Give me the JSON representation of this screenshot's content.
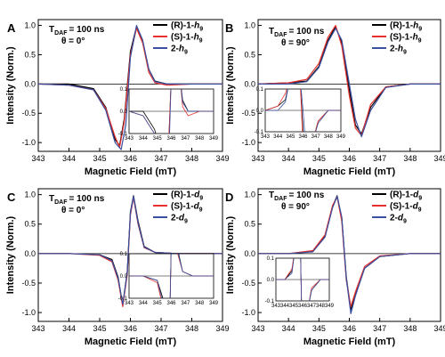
{
  "colors": {
    "black": "#000000",
    "red": "#e8312f",
    "blue": "#3a4fa0"
  },
  "chart_data": [
    {
      "type": "line",
      "panel": "A",
      "annotation": {
        "t_daf": "T",
        "t_sub": "DAF",
        "t_value": "= 100 ns",
        "theta": "θ = 0°"
      },
      "xlabel": "Magnetic Field (mT)",
      "ylabel": "Intensity (Norm.)",
      "xlim": [
        343,
        349
      ],
      "ylim": [
        -1.15,
        1.1
      ],
      "xticks": [
        "343",
        "344",
        "345",
        "346",
        "347",
        "348",
        "349"
      ],
      "yticks": [
        "-1.0",
        "-0.5",
        "0.0",
        "0.5",
        "1.0"
      ],
      "legend_position": "top-right",
      "series": [
        {
          "name": "(R)-1-",
          "name_sub": "h9",
          "color": "black",
          "x": [
            343,
            344,
            344.8,
            345.2,
            345.5,
            345.65,
            345.8,
            346.0,
            346.2,
            346.4,
            346.6,
            346.8,
            347.2,
            348,
            349
          ],
          "y": [
            0,
            0,
            -0.08,
            -0.4,
            -0.95,
            -1.05,
            -0.6,
            0.55,
            0.98,
            0.72,
            0.25,
            0.05,
            0,
            0,
            0
          ]
        },
        {
          "name": "(S)-1-",
          "name_sub": "h9",
          "color": "red",
          "x": [
            343,
            344,
            344.8,
            345.2,
            345.5,
            345.65,
            345.8,
            346.0,
            346.2,
            346.4,
            346.6,
            346.8,
            347.2,
            348,
            349
          ],
          "y": [
            0,
            -0.02,
            -0.1,
            -0.42,
            -0.9,
            -1.08,
            -0.65,
            0.5,
            0.95,
            0.7,
            0.2,
            0.02,
            -0.02,
            0,
            0
          ]
        },
        {
          "name": "2-",
          "name_sub": "h9",
          "color": "blue",
          "x": [
            343,
            344,
            344.8,
            345.2,
            345.5,
            345.7,
            345.85,
            346.0,
            346.2,
            346.4,
            346.6,
            346.8,
            347.2,
            348,
            349
          ],
          "y": [
            0,
            -0.02,
            -0.1,
            -0.45,
            -1.0,
            -1.12,
            -0.7,
            0.45,
            1.0,
            0.75,
            0.25,
            0.04,
            0,
            0,
            0
          ]
        }
      ],
      "inset": {
        "xlim": [
          343,
          349
        ],
        "ylim": [
          -0.1,
          0.1
        ],
        "xticks": [
          "343",
          "344",
          "345",
          "346",
          "347",
          "348",
          "349"
        ],
        "yticks": [
          "0.1",
          "0.0",
          "-0.1"
        ]
      }
    },
    {
      "type": "line",
      "panel": "B",
      "annotation": {
        "t_daf": "T",
        "t_sub": "DAF",
        "t_value": "= 100 ns",
        "theta": "θ = 90°"
      },
      "xlabel": "Magnetic Field (mT)",
      "ylabel": "Intensity (Norm.)",
      "xlim": [
        343,
        349
      ],
      "ylim": [
        -1.15,
        1.1
      ],
      "xticks": [
        "343",
        "344",
        "345",
        "346",
        "347",
        "348",
        "349"
      ],
      "yticks": [
        "-1.0",
        "-0.5",
        "0.0",
        "0.5",
        "1.0"
      ],
      "legend_position": "top-right",
      "series": [
        {
          "name": "(R)-1-",
          "name_sub": "h9",
          "color": "black",
          "x": [
            343,
            344,
            344.6,
            345.0,
            345.3,
            345.55,
            345.75,
            346.0,
            346.2,
            346.4,
            346.7,
            347.2,
            348,
            349
          ],
          "y": [
            0,
            0.02,
            0.05,
            0.3,
            0.75,
            0.98,
            0.7,
            -0.1,
            -0.7,
            -0.85,
            -0.4,
            -0.05,
            0,
            0
          ]
        },
        {
          "name": "(S)-1-",
          "name_sub": "h9",
          "color": "red",
          "x": [
            343,
            344,
            344.6,
            345.0,
            345.3,
            345.55,
            345.75,
            346.0,
            346.2,
            346.4,
            346.7,
            347.2,
            348,
            349
          ],
          "y": [
            0,
            0.02,
            0.08,
            0.35,
            0.8,
            1.0,
            0.65,
            -0.2,
            -0.75,
            -0.88,
            -0.35,
            -0.05,
            0,
            0
          ]
        },
        {
          "name": "2-",
          "name_sub": "h9",
          "color": "blue",
          "x": [
            343,
            344,
            344.6,
            345.0,
            345.3,
            345.55,
            345.75,
            346.0,
            346.2,
            346.4,
            346.7,
            347.2,
            348,
            349
          ],
          "y": [
            0,
            0,
            0.04,
            0.28,
            0.72,
            0.95,
            0.75,
            0,
            -0.6,
            -0.9,
            -0.45,
            -0.06,
            0,
            0
          ]
        }
      ],
      "inset": {
        "xlim": [
          343,
          349
        ],
        "ylim": [
          -0.1,
          0.1
        ],
        "xticks": [
          "343",
          "344",
          "345",
          "346",
          "347",
          "348",
          "349"
        ],
        "yticks": [
          "0.1",
          "0.0",
          "-0.1"
        ]
      }
    },
    {
      "type": "line",
      "panel": "C",
      "annotation": {
        "t_daf": "T",
        "t_sub": "DAF",
        "t_value": "= 100 ns",
        "theta": "θ = 0°"
      },
      "xlabel": "Magnetic Field (mT)",
      "ylabel": "Intensity (Norm.)",
      "xlim": [
        343,
        349
      ],
      "ylim": [
        -1.15,
        1.1
      ],
      "xticks": [
        "343",
        "344",
        "345",
        "346",
        "347",
        "348",
        "349"
      ],
      "yticks": [
        "-1.0",
        "-0.5",
        "0.0",
        "0.5",
        "1.0"
      ],
      "legend_position": "top-right",
      "series": [
        {
          "name": "(R)-1-",
          "name_sub": "d9",
          "color": "black",
          "x": [
            343,
            344,
            345,
            345.4,
            345.6,
            345.75,
            345.9,
            346.0,
            346.1,
            346.25,
            346.45,
            346.8,
            347.5,
            349
          ],
          "y": [
            0,
            0,
            -0.02,
            -0.1,
            -0.4,
            -0.88,
            -0.3,
            0.7,
            0.98,
            0.55,
            0.12,
            0.02,
            0,
            0
          ]
        },
        {
          "name": "(S)-1-",
          "name_sub": "d9",
          "color": "red",
          "x": [
            343,
            344,
            345,
            345.4,
            345.6,
            345.75,
            345.9,
            346.0,
            346.1,
            346.25,
            346.45,
            346.8,
            347.5,
            349
          ],
          "y": [
            0,
            0,
            -0.03,
            -0.14,
            -0.45,
            -0.9,
            -0.35,
            0.65,
            0.95,
            0.5,
            0.1,
            0.02,
            0,
            0
          ]
        },
        {
          "name": "2-",
          "name_sub": "d9",
          "color": "blue",
          "x": [
            343,
            344,
            345,
            345.4,
            345.6,
            345.75,
            345.9,
            346.0,
            346.1,
            346.25,
            346.45,
            346.8,
            347.5,
            349
          ],
          "y": [
            0,
            0,
            -0.02,
            -0.12,
            -0.42,
            -0.86,
            -0.32,
            0.68,
            0.97,
            0.52,
            0.11,
            0.02,
            0,
            0
          ]
        }
      ],
      "inset": {
        "xlim": [
          343,
          349
        ],
        "ylim": [
          -0.1,
          0.1
        ],
        "xticks": [
          "343",
          "344",
          "345",
          "346",
          "347",
          "348",
          "349"
        ],
        "yticks": [
          "0.1",
          "0.0",
          "-0.1"
        ]
      }
    },
    {
      "type": "line",
      "panel": "D",
      "annotation": {
        "t_daf": "T",
        "t_sub": "DAF",
        "t_value": "= 100 ns",
        "theta": "θ = 90°"
      },
      "xlabel": "Magnetic Field (mT)",
      "ylabel": "Intensity (Norm.)",
      "xlim": [
        343,
        349
      ],
      "ylim": [
        -1.15,
        1.1
      ],
      "xticks": [
        "343",
        "344",
        "345",
        "346",
        "347",
        "348",
        "349"
      ],
      "yticks": [
        "-1.0",
        "-0.5",
        "0.0",
        "0.5",
        "1.0"
      ],
      "legend_position": "top-right",
      "series": [
        {
          "name": "(R)-1-",
          "name_sub": "d9",
          "color": "black",
          "x": [
            343,
            344,
            344.8,
            345.2,
            345.45,
            345.6,
            345.75,
            345.9,
            346.05,
            346.2,
            346.5,
            347,
            348,
            349
          ],
          "y": [
            0,
            0,
            0.04,
            0.3,
            0.8,
            0.98,
            0.6,
            -0.4,
            -0.95,
            -0.7,
            -0.25,
            -0.05,
            0,
            0
          ]
        },
        {
          "name": "(S)-1-",
          "name_sub": "d9",
          "color": "red",
          "x": [
            343,
            344,
            344.8,
            345.2,
            345.45,
            345.6,
            345.75,
            345.9,
            346.05,
            346.2,
            346.5,
            347,
            348,
            349
          ],
          "y": [
            0,
            0,
            0.05,
            0.32,
            0.82,
            0.96,
            0.55,
            -0.45,
            -0.9,
            -0.65,
            -0.22,
            -0.04,
            0,
            0
          ]
        },
        {
          "name": "2-",
          "name_sub": "d9",
          "color": "blue",
          "x": [
            343,
            344,
            344.8,
            345.2,
            345.45,
            345.6,
            345.75,
            345.9,
            346.05,
            346.2,
            346.5,
            347,
            348,
            349
          ],
          "y": [
            0,
            0,
            0.03,
            0.28,
            0.78,
            0.97,
            0.62,
            -0.42,
            -1.02,
            -0.72,
            -0.25,
            -0.05,
            0,
            0
          ]
        }
      ],
      "inset": {
        "xlim": [
          343,
          349
        ],
        "ylim": [
          -0.1,
          0.1
        ],
        "xticks": [
          "343",
          "344",
          "345",
          "346",
          "347",
          "348",
          "349"
        ],
        "yticks": [
          "0.1",
          "0.0",
          "-0.1"
        ]
      }
    }
  ]
}
